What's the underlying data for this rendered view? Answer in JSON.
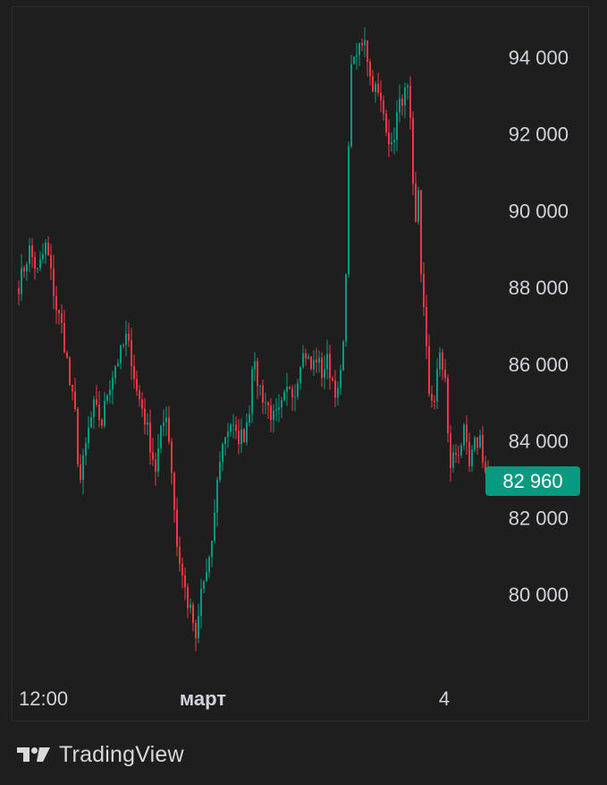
{
  "chart_data": {
    "type": "candlestick",
    "title": "",
    "xlabel": "",
    "ylabel": "",
    "ylim": [
      78000,
      95500
    ],
    "y_ticks": [
      "94 000",
      "92 000",
      "90 000",
      "88 000",
      "86 000",
      "84 000",
      "82 000",
      "80 000"
    ],
    "y_tick_values": [
      94000,
      92000,
      90000,
      88000,
      86000,
      84000,
      82000,
      80000
    ],
    "x_labels": [
      {
        "label": "12:00",
        "bold": false,
        "at_bar": 0
      },
      {
        "label": "март",
        "bold": true,
        "at_bar": 60
      },
      {
        "label": "4",
        "bold": false,
        "at_bar": 150
      }
    ],
    "grid": false,
    "last_price_label": "82 960",
    "last_price": 82960,
    "colors": {
      "up": "#089981",
      "down": "#f23645",
      "price_tag": "#089981",
      "axis_text": "#d1d4dc"
    },
    "path": [
      [
        0,
        88100
      ],
      [
        4,
        89000
      ],
      [
        7,
        88400
      ],
      [
        10,
        89100
      ],
      [
        11,
        88800
      ],
      [
        14,
        87500
      ],
      [
        16,
        87000
      ],
      [
        18,
        86100
      ],
      [
        19,
        85500
      ],
      [
        21,
        84700
      ],
      [
        22,
        83600
      ],
      [
        23,
        83000
      ],
      [
        26,
        84300
      ],
      [
        28,
        84900
      ],
      [
        31,
        84500
      ],
      [
        33,
        85300
      ],
      [
        36,
        86000
      ],
      [
        38,
        86300
      ],
      [
        40,
        86700
      ],
      [
        42,
        86200
      ],
      [
        44,
        85300
      ],
      [
        46,
        84900
      ],
      [
        48,
        84300
      ],
      [
        50,
        83600
      ],
      [
        51,
        83300
      ],
      [
        53,
        84200
      ],
      [
        55,
        84800
      ],
      [
        57,
        83300
      ],
      [
        59,
        81300
      ],
      [
        61,
        80500
      ],
      [
        63,
        79800
      ],
      [
        65,
        79300
      ],
      [
        66,
        78700
      ],
      [
        68,
        80100
      ],
      [
        70,
        80600
      ],
      [
        72,
        81200
      ],
      [
        73,
        82200
      ],
      [
        75,
        83600
      ],
      [
        77,
        84200
      ],
      [
        79,
        84500
      ],
      [
        81,
        84100
      ],
      [
        84,
        84200
      ],
      [
        86,
        84900
      ],
      [
        87,
        86100
      ],
      [
        89,
        85600
      ],
      [
        91,
        85200
      ],
      [
        93,
        84900
      ],
      [
        95,
        84600
      ],
      [
        97,
        84700
      ],
      [
        99,
        85100
      ],
      [
        101,
        85500
      ],
      [
        103,
        85300
      ],
      [
        105,
        86200
      ],
      [
        107,
        86300
      ],
      [
        109,
        85900
      ],
      [
        111,
        86200
      ],
      [
        113,
        85800
      ],
      [
        115,
        86100
      ],
      [
        117,
        85600
      ],
      [
        119,
        85200
      ],
      [
        121,
        86400
      ],
      [
        122,
        88600
      ],
      [
        123,
        91500
      ],
      [
        124,
        94000
      ],
      [
        125,
        93800
      ],
      [
        127,
        94300
      ],
      [
        129,
        94600
      ],
      [
        131,
        93500
      ],
      [
        133,
        93200
      ],
      [
        135,
        92800
      ],
      [
        137,
        92300
      ],
      [
        139,
        91600
      ],
      [
        141,
        92500
      ],
      [
        143,
        93000
      ],
      [
        145,
        93100
      ],
      [
        146,
        92200
      ],
      [
        147,
        90500
      ],
      [
        148,
        89600
      ],
      [
        149,
        90600
      ],
      [
        150,
        88500
      ],
      [
        151,
        87400
      ],
      [
        152,
        86300
      ],
      [
        153,
        85300
      ],
      [
        155,
        85100
      ],
      [
        157,
        86300
      ],
      [
        159,
        85600
      ],
      [
        160,
        84100
      ],
      [
        161,
        83400
      ],
      [
        162,
        83600
      ],
      [
        164,
        83800
      ],
      [
        166,
        84200
      ],
      [
        168,
        83300
      ],
      [
        170,
        83900
      ],
      [
        172,
        84100
      ],
      [
        174,
        83200
      ],
      [
        175,
        82960
      ]
    ]
  },
  "brand": {
    "name": "TradingView",
    "logo_icon": "tradingview-logo-icon"
  }
}
